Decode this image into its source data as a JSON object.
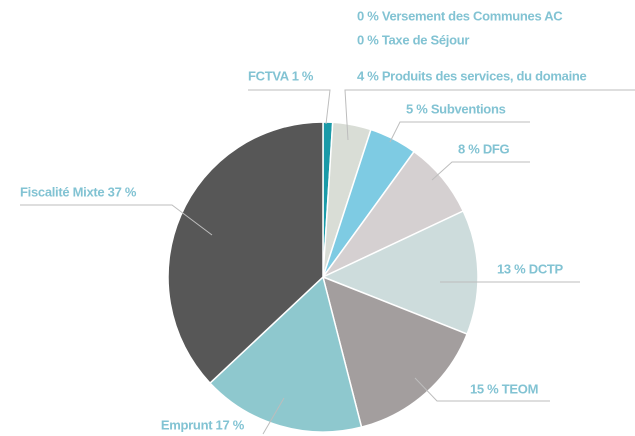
{
  "chart_data": {
    "type": "pie",
    "values": [
      1,
      0,
      0,
      4,
      5,
      8,
      13,
      15,
      17,
      37
    ],
    "value_labels": [
      "FCTVA 1 %",
      "0 % Versement des Communes AC",
      "0 % Taxe de Séjour",
      "4 % Produits des services, du domaine",
      "5 % Subventions",
      "8 % DFG",
      "13 % DCTP",
      "15 % TEOM",
      "Emprunt 17 %",
      "Fiscalité Mixte 37 %"
    ],
    "colors": [
      "#1a9aa8",
      "#b8c8c8",
      "#c8d0d0",
      "#d9ddd6",
      "#7ecbe3",
      "#d5d0d1",
      "#cddcdc",
      "#a39e9e",
      "#8ec8ce",
      "#575757"
    ]
  }
}
